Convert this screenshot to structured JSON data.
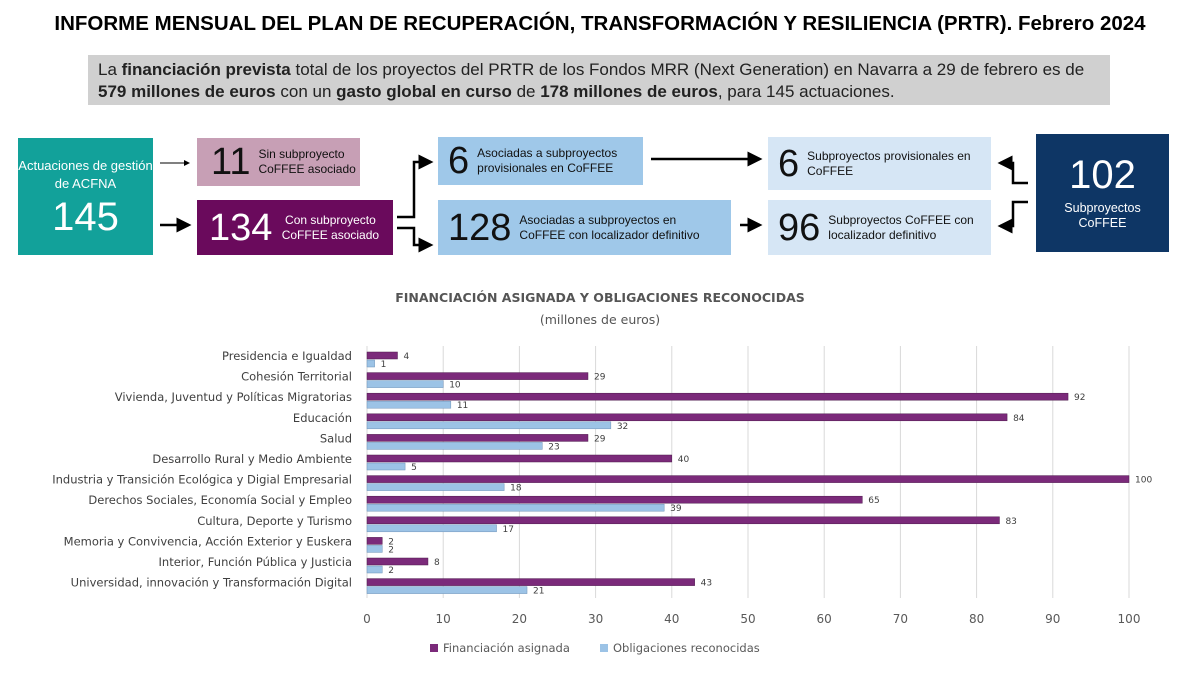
{
  "title": "INFORME MENSUAL DEL PLAN DE RECUPERACIÓN, TRANSFORMACIÓN Y RESILIENCIA (PRTR). Febrero 2024",
  "summary": {
    "p1": "La ",
    "b1": "financiación prevista",
    "p2": " total de los proyectos del PRTR de los Fondos MRR (Next Generation) en Navarra a 29 de febrero es de ",
    "b2": "579 millones de euros",
    "p3": " con un ",
    "b3": "gasto global en curso",
    "p4": " de ",
    "b4": "178 millones de euros",
    "p5": ", para 145 actuaciones."
  },
  "flow": {
    "actuaciones": {
      "label": "Actuaciones de gestión de ACFNA",
      "value": "145",
      "color": "#12a19a"
    },
    "sin": {
      "value": "11",
      "label": "Sin subproyecto CoFFEE asociado",
      "color": "#c79fb5"
    },
    "con": {
      "value": "134",
      "label": "Con subproyecto CoFFEE asociado",
      "color": "#6a0a5c"
    },
    "asoc_prov": {
      "value": "6",
      "label": "Asociadas a subproyectos provisionales en CoFFEE",
      "color": "#9fc8e9"
    },
    "asoc_def": {
      "value": "128",
      "label": "Asociadas a subproyectos en CoFFEE con localizador definitivo",
      "color": "#9fc8e9"
    },
    "sub_prov": {
      "value": "6",
      "label": "Subproyectos provisionales en CoFFEE",
      "color": "#d6e6f5"
    },
    "sub_def": {
      "value": "96",
      "label": "Subproyectos CoFFEE con localizador definitivo",
      "color": "#d6e6f5"
    },
    "subproyectos": {
      "value": "102",
      "label": "Subproyectos CoFFEE",
      "color": "#0e3665"
    }
  },
  "chart_data": {
    "type": "bar",
    "orientation": "horizontal",
    "title": "FINANCIACIÓN ASIGNADA Y OBLIGACIONES RECONOCIDAS",
    "subtitle": "(millones de euros)",
    "categories": [
      "Presidencia e Igualdad",
      "Cohesión Territorial",
      "Vivienda, Juventud y Políticas Migratorias",
      "Educación",
      "Salud",
      "Desarrollo Rural y Medio Ambiente",
      "Industria y Transición Ecológica y Digial Empresarial",
      "Derechos Sociales, Economía Social y Empleo",
      "Cultura, Deporte y Turismo",
      "Memoria y Convivencia, Acción Exterior y Euskera",
      "Interior, Función Pública y Justicia",
      "Universidad, innovación y Transformación Digital"
    ],
    "series": [
      {
        "name": "Financiación asignada",
        "color": "#7b2a7a",
        "values": [
          4,
          29,
          92,
          84,
          29,
          40,
          100,
          65,
          83,
          2,
          8,
          43
        ]
      },
      {
        "name": "Obligaciones reconocidas",
        "color": "#9cc3e6",
        "values": [
          1,
          10,
          11,
          32,
          23,
          5,
          18,
          39,
          17,
          2,
          2,
          21
        ]
      }
    ],
    "xlim": [
      0,
      100
    ],
    "xticks": [
      "0",
      "10",
      "20",
      "30",
      "40",
      "50",
      "60",
      "70",
      "80",
      "90",
      "100"
    ],
    "grid": true,
    "legend": "bottom"
  }
}
